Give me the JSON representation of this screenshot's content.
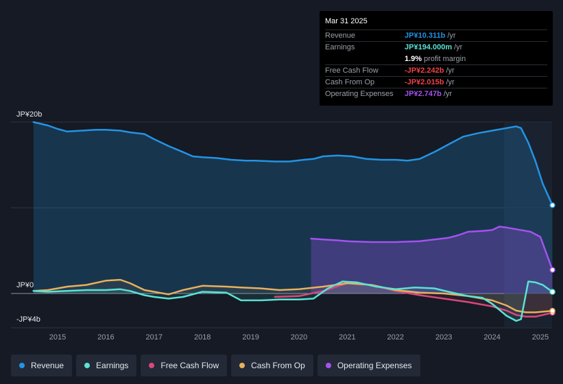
{
  "tooltip": {
    "date": "Mar 31 2025",
    "rows": [
      {
        "label": "Revenue",
        "value": "JP¥10.311b",
        "unit": "/yr",
        "color": "#2394e4"
      },
      {
        "label": "Earnings",
        "value": "JP¥194.000m",
        "unit": "/yr",
        "color": "#59e3d4"
      },
      {
        "label": "",
        "value": "1.9%",
        "unit": "profit margin",
        "color": "#ffffff"
      },
      {
        "label": "Free Cash Flow",
        "value": "-JP¥2.242b",
        "unit": "/yr",
        "color": "#f0414a"
      },
      {
        "label": "Cash From Op",
        "value": "-JP¥2.015b",
        "unit": "/yr",
        "color": "#f0414a"
      },
      {
        "label": "Operating Expenses",
        "value": "JP¥2.747b",
        "unit": "/yr",
        "color": "#a452f0"
      }
    ]
  },
  "legend": [
    {
      "label": "Revenue",
      "color": "#2394e4"
    },
    {
      "label": "Earnings",
      "color": "#59e3d4"
    },
    {
      "label": "Free Cash Flow",
      "color": "#d9487a"
    },
    {
      "label": "Cash From Op",
      "color": "#e9b15c"
    },
    {
      "label": "Operating Expenses",
      "color": "#a452f0"
    }
  ],
  "chart_data": {
    "type": "line",
    "y_axis_labels": {
      "top": "JP¥20b",
      "zero": "JP¥0",
      "bottom": "-JP¥4b"
    },
    "ylim": [
      -4,
      20
    ],
    "xlim": [
      2014.5,
      2025.25
    ],
    "x_ticks": [
      "2015",
      "2016",
      "2017",
      "2018",
      "2019",
      "2020",
      "2021",
      "2022",
      "2023",
      "2024",
      "2025"
    ],
    "series": [
      {
        "name": "Revenue",
        "color": "#2394e4",
        "x": [
          2014.5,
          2014.8,
          2015.0,
          2015.2,
          2015.5,
          2015.8,
          2016.0,
          2016.3,
          2016.5,
          2016.8,
          2017.0,
          2017.3,
          2017.6,
          2017.8,
          2018.0,
          2018.3,
          2018.6,
          2018.9,
          2019.1,
          2019.5,
          2019.8,
          2020.1,
          2020.3,
          2020.5,
          2020.8,
          2021.1,
          2021.4,
          2021.7,
          2022.0,
          2022.25,
          2022.5,
          2022.8,
          2023.1,
          2023.4,
          2023.7,
          2024.0,
          2024.3,
          2024.5,
          2024.6,
          2024.75,
          2024.9,
          2025.05,
          2025.25
        ],
        "values": [
          20.0,
          19.6,
          19.2,
          18.9,
          19.0,
          19.1,
          19.1,
          19.0,
          18.8,
          18.6,
          18.0,
          17.2,
          16.5,
          16.0,
          15.9,
          15.8,
          15.6,
          15.5,
          15.5,
          15.4,
          15.4,
          15.6,
          15.7,
          16.0,
          16.1,
          16.0,
          15.7,
          15.6,
          15.6,
          15.5,
          15.7,
          16.5,
          17.4,
          18.3,
          18.7,
          19.0,
          19.3,
          19.5,
          19.3,
          17.6,
          15.4,
          12.8,
          10.3
        ]
      },
      {
        "name": "Earnings",
        "color": "#59e3d4",
        "x": [
          2014.5,
          2014.8,
          2015.2,
          2015.6,
          2016.0,
          2016.3,
          2016.5,
          2016.8,
          2017.0,
          2017.3,
          2017.6,
          2018.0,
          2018.5,
          2018.8,
          2019.2,
          2019.6,
          2020.0,
          2020.3,
          2020.6,
          2020.9,
          2021.2,
          2021.6,
          2022.0,
          2022.4,
          2022.8,
          2023.1,
          2023.5,
          2023.8,
          2024.0,
          2024.3,
          2024.5,
          2024.6,
          2024.75,
          2024.9,
          2025.05,
          2025.25
        ],
        "values": [
          0.3,
          0.2,
          0.3,
          0.4,
          0.4,
          0.5,
          0.3,
          -0.2,
          -0.4,
          -0.6,
          -0.4,
          0.2,
          0.1,
          -0.8,
          -0.8,
          -0.7,
          -0.7,
          -0.6,
          0.6,
          1.4,
          1.3,
          0.8,
          0.5,
          0.7,
          0.6,
          0.2,
          -0.3,
          -0.5,
          -1.2,
          -2.6,
          -3.2,
          -3.0,
          1.4,
          1.3,
          1.0,
          0.19
        ]
      },
      {
        "name": "Free Cash Flow",
        "color": "#d9487a",
        "x": [
          2019.5,
          2020.0,
          2020.5,
          2021.0,
          2021.5,
          2022.0,
          2022.5,
          2023.0,
          2023.5,
          2024.0,
          2024.3,
          2024.5,
          2024.7,
          2024.9,
          2025.25
        ],
        "values": [
          -0.4,
          -0.3,
          0.3,
          1.2,
          1.0,
          0.3,
          -0.2,
          -0.6,
          -1.0,
          -1.5,
          -2.0,
          -2.5,
          -2.7,
          -2.7,
          -2.24
        ]
      },
      {
        "name": "Cash From Op",
        "color": "#e9b15c",
        "x": [
          2014.5,
          2014.8,
          2015.2,
          2015.6,
          2016.0,
          2016.3,
          2016.5,
          2016.8,
          2017.0,
          2017.3,
          2017.6,
          2018.0,
          2018.5,
          2018.8,
          2019.2,
          2019.6,
          2020.0,
          2020.5,
          2021.0,
          2021.5,
          2022.0,
          2022.5,
          2023.0,
          2023.5,
          2024.0,
          2024.3,
          2024.5,
          2024.7,
          2024.9,
          2025.25
        ],
        "values": [
          0.3,
          0.4,
          0.8,
          1.0,
          1.5,
          1.6,
          1.2,
          0.4,
          0.2,
          -0.1,
          0.4,
          0.9,
          0.8,
          0.7,
          0.6,
          0.4,
          0.5,
          0.8,
          1.2,
          1.0,
          0.4,
          0.1,
          0.0,
          -0.3,
          -0.8,
          -1.4,
          -2.0,
          -2.2,
          -2.2,
          -2.02
        ]
      },
      {
        "name": "Operating Expenses",
        "color": "#a452f0",
        "x": [
          2020.25,
          2020.5,
          2020.8,
          2021.0,
          2021.5,
          2022.0,
          2022.5,
          2022.8,
          2023.1,
          2023.3,
          2023.5,
          2023.8,
          2024.0,
          2024.15,
          2024.3,
          2024.5,
          2024.8,
          2025.0,
          2025.25
        ],
        "values": [
          6.4,
          6.3,
          6.2,
          6.1,
          6.0,
          6.0,
          6.1,
          6.3,
          6.5,
          6.8,
          7.2,
          7.3,
          7.4,
          7.8,
          7.7,
          7.5,
          7.2,
          6.6,
          2.75
        ]
      }
    ],
    "forecast_region_start": 2024.25
  }
}
